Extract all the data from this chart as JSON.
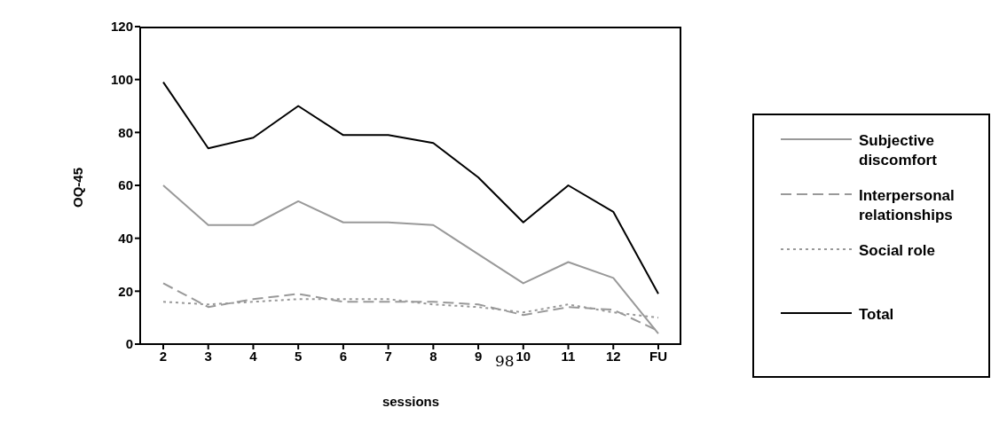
{
  "chart_data": {
    "type": "line",
    "xlabel": "sessions",
    "ylabel": "OQ-45",
    "categories": [
      "2",
      "3",
      "4",
      "5",
      "6",
      "7",
      "8",
      "9",
      "10",
      "11",
      "12",
      "FU"
    ],
    "series": [
      {
        "name": "Subjective discomfort",
        "color": "#999999",
        "line_style": "solid",
        "values": [
          60,
          45,
          45,
          54,
          46,
          46,
          45,
          34,
          23,
          31,
          25,
          4
        ]
      },
      {
        "name": "Interpersonal relationships",
        "color": "#999999",
        "line_style": "dashed",
        "values": [
          23,
          14,
          17,
          19,
          16,
          16,
          16,
          15,
          11,
          14,
          13,
          5
        ]
      },
      {
        "name": "Social role",
        "color": "#999999",
        "line_style": "dotted",
        "values": [
          16,
          15,
          16,
          17,
          17,
          17,
          15,
          14,
          12,
          15,
          12,
          10
        ]
      },
      {
        "name": "Total",
        "color": "#000000",
        "line_style": "solid",
        "values": [
          99,
          74,
          78,
          90,
          79,
          79,
          76,
          63,
          46,
          60,
          50,
          19
        ]
      }
    ],
    "ylim": [
      0,
      120
    ],
    "yticks": [
      0,
      20,
      40,
      60,
      80,
      100,
      120
    ],
    "legend": "right",
    "marker": "none",
    "annotations": [
      "98"
    ]
  }
}
